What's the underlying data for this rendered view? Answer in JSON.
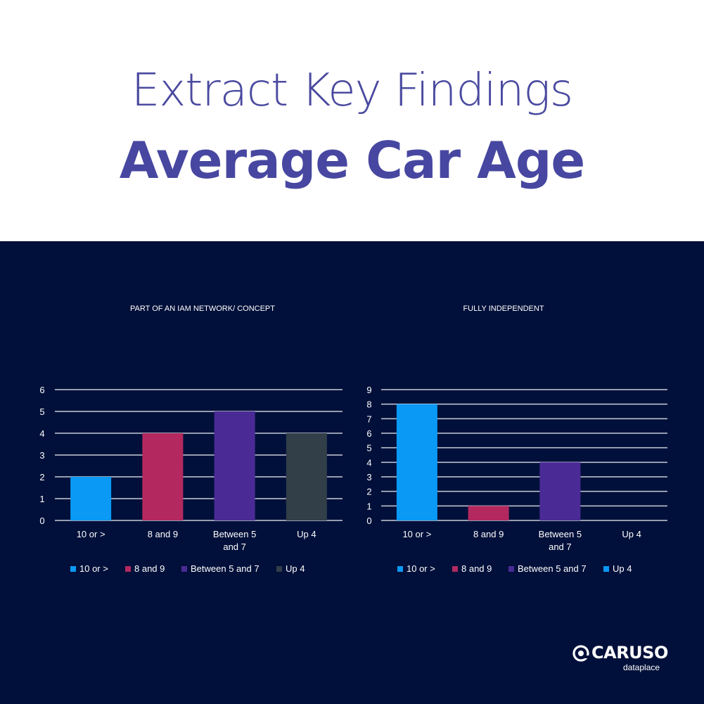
{
  "header": {
    "title": "Extract Key Findings",
    "subtitle": "Average Car Age"
  },
  "colors": {
    "title": "#4a4aa0",
    "panel_bg": "#01103a",
    "grid": "#c8ccd8",
    "text": "#ffffff"
  },
  "chart_data": [
    {
      "type": "bar",
      "title": "PART OF AN IAM NETWORK/ CONCEPT",
      "categories": [
        "10 or >",
        "8 and 9",
        "Between 5 and 7",
        "Up 4"
      ],
      "category_lines": [
        [
          "10 or >"
        ],
        [
          "8 and 9"
        ],
        [
          "Between 5",
          "and 7"
        ],
        [
          "Up 4"
        ]
      ],
      "values": [
        2,
        4,
        5,
        4
      ],
      "colors": [
        "#0a99f5",
        "#b3295f",
        "#4a2b96",
        "#323e48"
      ],
      "ylim": [
        0,
        6
      ],
      "yticks": [
        0,
        1,
        2,
        3,
        4,
        5,
        6
      ],
      "grid": true,
      "legend": "bottom",
      "legend_entries": [
        "10 or >",
        "8 and 9",
        "Between 5 and 7",
        "Up 4"
      ]
    },
    {
      "type": "bar",
      "title": "FULLY INDEPENDENT",
      "categories": [
        "10 or >",
        "8 and 9",
        "Between 5 and 7",
        "Up 4"
      ],
      "category_lines": [
        [
          "10 or >"
        ],
        [
          "8 and 9"
        ],
        [
          "Between 5",
          "and 7"
        ],
        [
          "Up 4"
        ]
      ],
      "values": [
        8,
        1,
        4,
        0
      ],
      "colors": [
        "#0a99f5",
        "#b3295f",
        "#4a2b96",
        "#0a99f5"
      ],
      "ylim": [
        0,
        9
      ],
      "yticks": [
        0,
        1,
        2,
        3,
        4,
        5,
        6,
        7,
        8,
        9
      ],
      "grid": true,
      "legend": "bottom",
      "legend_entries": [
        "10 or >",
        "8 and 9",
        "Between 5 and 7",
        "Up 4"
      ]
    }
  ],
  "logo": {
    "name": "CARUSO",
    "tagline": "dataplace",
    "icon": "caruso-logo-icon"
  }
}
